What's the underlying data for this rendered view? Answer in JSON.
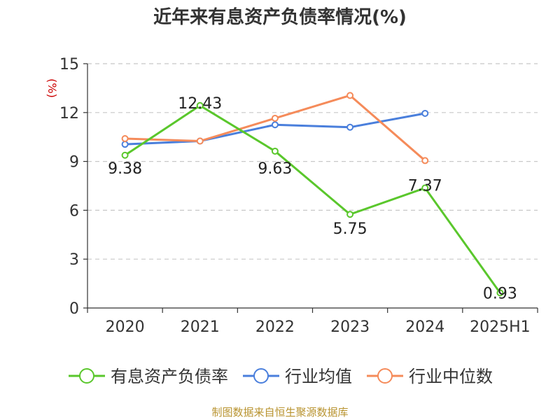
{
  "chart_data": {
    "type": "line",
    "title": "近年来有息资产负债率情况(%)",
    "ylabel": "(%)",
    "xlabel": "",
    "categories": [
      "2020",
      "2021",
      "2022",
      "2023",
      "2024",
      "2025H1"
    ],
    "ylim": [
      0,
      15
    ],
    "yticks": [
      0,
      3,
      6,
      9,
      12,
      15
    ],
    "grid": true,
    "legend_position": "bottom",
    "series": [
      {
        "name": "有息资产负债率",
        "color": "#5ac72c",
        "values": [
          9.38,
          12.43,
          9.63,
          5.75,
          7.37,
          0.93
        ],
        "show_labels": true
      },
      {
        "name": "行业均值",
        "color": "#4a7fdc",
        "values": [
          10.05,
          10.25,
          11.25,
          11.1,
          11.95,
          null
        ],
        "show_labels": false
      },
      {
        "name": "行业中位数",
        "color": "#f58b5a",
        "values": [
          10.4,
          10.25,
          11.65,
          13.05,
          9.05,
          null
        ],
        "show_labels": false
      }
    ],
    "source": "制图数据来自恒生聚源数据库"
  }
}
